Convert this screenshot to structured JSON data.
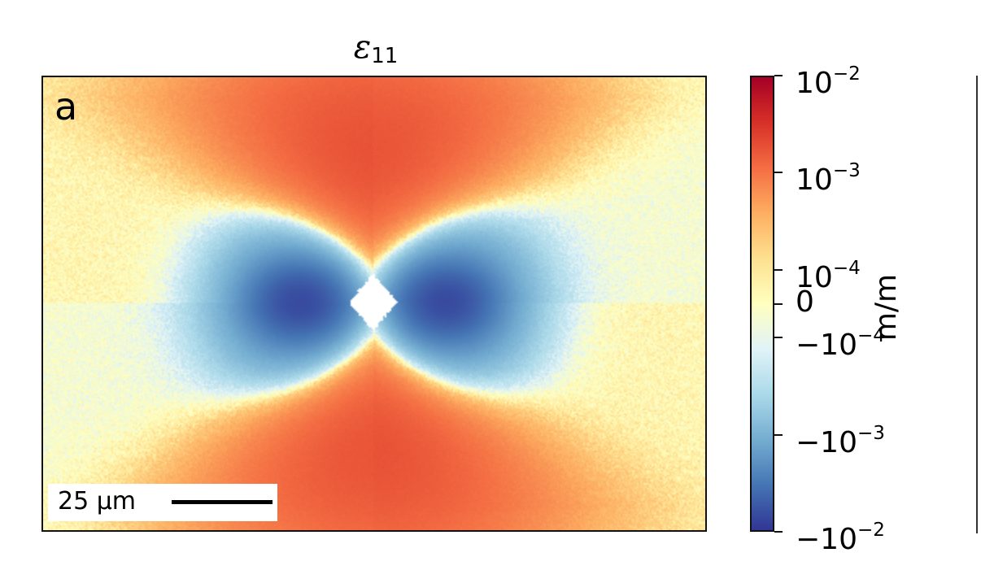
{
  "chart_data": {
    "type": "heatmap",
    "title": "ε",
    "title_subscript": "11",
    "panel_label": "a",
    "scale_bar": {
      "label": "25 µm"
    },
    "colorbar": {
      "label": "m/m",
      "scale": "symlog",
      "range": [
        -0.01,
        0.01
      ],
      "linthresh": 0.0001,
      "colormap": "RdYlBu_r",
      "colors_low_to_high": [
        "#313695",
        "#4575b4",
        "#74add1",
        "#abd9e9",
        "#e0f3f8",
        "#ffffbf",
        "#fee090",
        "#fdae61",
        "#f46d43",
        "#d73027",
        "#a50026"
      ],
      "ticks": [
        {
          "value": 0.01,
          "base": "10",
          "exp": "−2"
        },
        {
          "value": 0.001,
          "base": "10",
          "exp": "−3"
        },
        {
          "value": 0.0001,
          "base": "10",
          "exp": "−4"
        },
        {
          "value": 0,
          "base": "0",
          "exp": ""
        },
        {
          "value": -0.0001,
          "base": "−10",
          "exp": "−4"
        },
        {
          "value": -0.001,
          "base": "−10",
          "exp": "−3"
        },
        {
          "value": -0.01,
          "base": "−10",
          "exp": "−2"
        }
      ]
    },
    "pattern": "indentation strain field: positive lobes above and below the central void, negative lobes left and right, near-zero noisy background, masked white region at center",
    "masked_color": "#ffffff"
  }
}
